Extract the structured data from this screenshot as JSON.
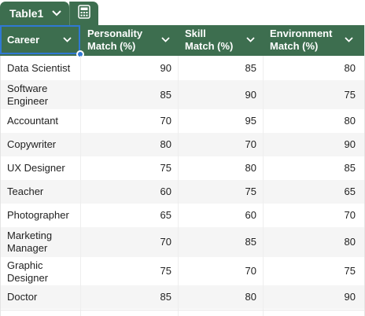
{
  "table_tab": {
    "name": "Table1",
    "dropdown_icon": "chevron-down-icon",
    "calc_icon": "calculator-icon"
  },
  "columns": [
    {
      "label_line1": "Career",
      "label_line2": ""
    },
    {
      "label_line1": "Personality",
      "label_line2": "Match (%)"
    },
    {
      "label_line1": "Skill",
      "label_line2": "Match (%)"
    },
    {
      "label_line1": "Environment",
      "label_line2": "Match (%)"
    }
  ],
  "rows": [
    [
      "Data Scientist",
      "90",
      "85",
      "80"
    ],
    [
      "Software Engineer",
      "85",
      "90",
      "75"
    ],
    [
      "Accountant",
      "70",
      "95",
      "80"
    ],
    [
      "Copywriter",
      "80",
      "70",
      "90"
    ],
    [
      "UX Designer",
      "75",
      "80",
      "85"
    ],
    [
      "Teacher",
      "60",
      "75",
      "65"
    ],
    [
      "Photographer",
      "65",
      "60",
      "70"
    ],
    [
      "Marketing Manager",
      "70",
      "85",
      "80"
    ],
    [
      "Graphic Designer",
      "75",
      "70",
      "75"
    ],
    [
      "Doctor",
      "85",
      "80",
      "90"
    ]
  ],
  "colors": {
    "header_bg": "#3d6e4f",
    "selection": "#2f78d4",
    "alt_row": "#f5f5f5"
  }
}
